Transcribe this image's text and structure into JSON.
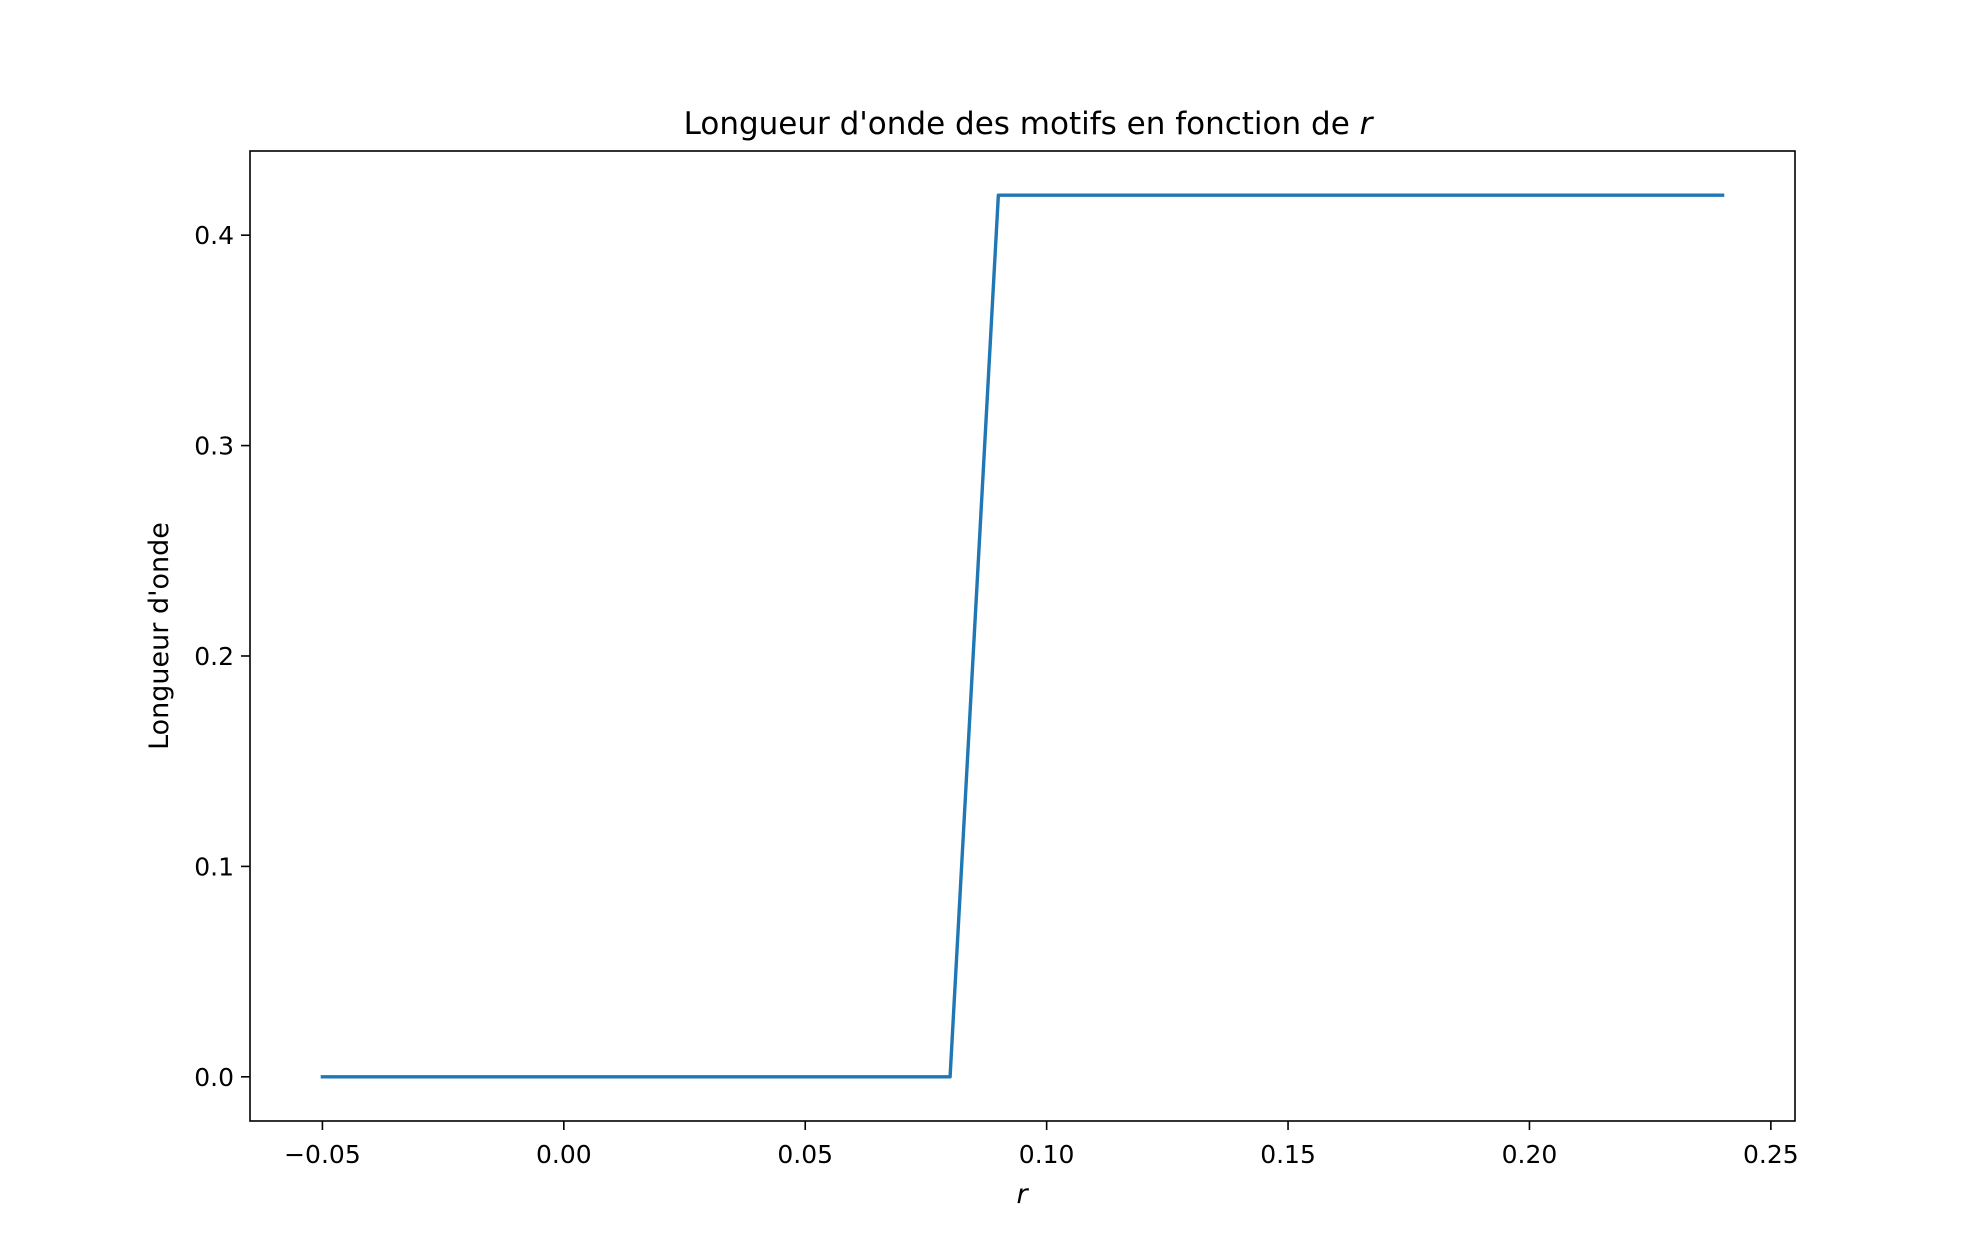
{
  "chart_data": {
    "type": "line",
    "title_prefix": "Longueur d'onde des motifs en fonction de ",
    "title_var": "r",
    "xlabel": "r",
    "ylabel": "Longueur d'onde",
    "xlim": [
      -0.065,
      0.255
    ],
    "ylim": [
      -0.021,
      0.44
    ],
    "xticks": [
      -0.05,
      0.0,
      0.05,
      0.1,
      0.15,
      0.2,
      0.25
    ],
    "xtick_labels": [
      "−0.05",
      "0.00",
      "0.05",
      "0.10",
      "0.15",
      "0.20",
      "0.25"
    ],
    "yticks": [
      0.0,
      0.1,
      0.2,
      0.3,
      0.4
    ],
    "ytick_labels": [
      "0.0",
      "0.1",
      "0.2",
      "0.3",
      "0.4"
    ],
    "grid": false,
    "series": [
      {
        "color": "#1f77b4",
        "x": [
          -0.05,
          0.08,
          0.09,
          0.24
        ],
        "y": [
          0.0,
          0.0,
          0.419,
          0.419
        ]
      }
    ]
  }
}
